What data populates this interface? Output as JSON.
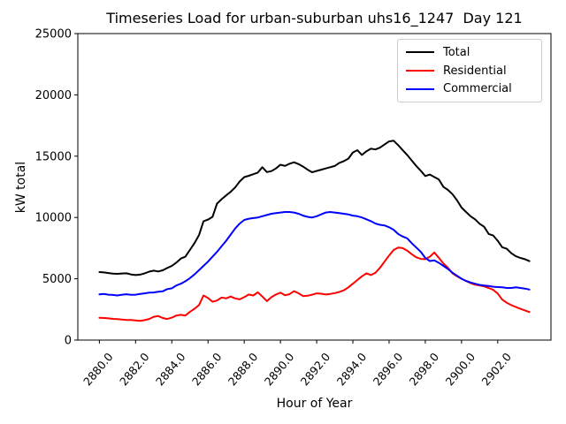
{
  "title": "Timeseries Load for urban-suburban uhs16_1247  Day 121",
  "chart_data": {
    "type": "line",
    "title": "Timeseries Load for urban-suburban uhs16_1247  Day 121",
    "xlabel": "Hour of Year",
    "ylabel": "kW total",
    "xlim": [
      2878.81,
      2904.94
    ],
    "ylim": [
      0,
      25000
    ],
    "grid": false,
    "legend_position": "upper right",
    "x_tick_labels": [
      "2880.0",
      "2882.0",
      "2884.0",
      "2886.0",
      "2888.0",
      "2890.0",
      "2892.0",
      "2894.0",
      "2896.0",
      "2898.0",
      "2900.0",
      "2902.0"
    ],
    "x_tick_values": [
      2880,
      2882,
      2884,
      2886,
      2888,
      2890,
      2892,
      2894,
      2896,
      2898,
      2900,
      2902
    ],
    "y_tick_labels": [
      "0",
      "5000",
      "10000",
      "15000",
      "20000",
      "25000"
    ],
    "y_tick_values": [
      0,
      5000,
      10000,
      15000,
      20000,
      25000
    ],
    "x_start": 2880.0,
    "x_step": 0.25,
    "series": [
      {
        "name": "Total",
        "color": "#000000",
        "values": [
          5550,
          5520,
          5470,
          5420,
          5400,
          5430,
          5450,
          5350,
          5300,
          5340,
          5450,
          5580,
          5660,
          5600,
          5690,
          5880,
          6050,
          6320,
          6650,
          6800,
          7350,
          7900,
          8550,
          9690,
          9830,
          10050,
          11130,
          11490,
          11800,
          12100,
          12450,
          12930,
          13290,
          13400,
          13530,
          13660,
          14100,
          13700,
          13780,
          14000,
          14300,
          14210,
          14380,
          14500,
          14350,
          14150,
          13900,
          13690,
          13800,
          13900,
          14000,
          14100,
          14200,
          14450,
          14600,
          14800,
          15300,
          15490,
          15100,
          15400,
          15610,
          15550,
          15700,
          15950,
          16200,
          16260,
          15900,
          15500,
          15100,
          14650,
          14200,
          13810,
          13380,
          13500,
          13300,
          13090,
          12490,
          12250,
          11900,
          11410,
          10810,
          10450,
          10100,
          9850,
          9490,
          9240,
          8650,
          8530,
          8100,
          7570,
          7450,
          7080,
          6840,
          6700,
          6600,
          6440
        ]
      },
      {
        "name": "Residential",
        "color": "#ff0000",
        "values": [
          1820,
          1800,
          1770,
          1730,
          1715,
          1670,
          1645,
          1640,
          1600,
          1570,
          1630,
          1720,
          1900,
          1960,
          1800,
          1720,
          1830,
          2000,
          2060,
          2000,
          2300,
          2550,
          2850,
          3640,
          3430,
          3130,
          3230,
          3470,
          3400,
          3550,
          3400,
          3320,
          3500,
          3720,
          3640,
          3900,
          3550,
          3180,
          3500,
          3720,
          3870,
          3660,
          3740,
          3990,
          3820,
          3590,
          3620,
          3700,
          3810,
          3780,
          3720,
          3770,
          3830,
          3930,
          4060,
          4300,
          4600,
          4900,
          5200,
          5450,
          5300,
          5500,
          5900,
          6400,
          6900,
          7350,
          7550,
          7500,
          7300,
          7000,
          6750,
          6620,
          6600,
          6800,
          7150,
          6700,
          6250,
          5900,
          5450,
          5200,
          5000,
          4820,
          4650,
          4520,
          4450,
          4380,
          4250,
          4100,
          3800,
          3300,
          3050,
          2850,
          2700,
          2550,
          2420,
          2290
        ]
      },
      {
        "name": "Commercial",
        "color": "#0000ff",
        "values": [
          3730,
          3760,
          3700,
          3680,
          3640,
          3700,
          3740,
          3690,
          3700,
          3760,
          3810,
          3870,
          3880,
          3940,
          3980,
          4160,
          4220,
          4450,
          4600,
          4800,
          5050,
          5350,
          5700,
          6050,
          6400,
          6800,
          7200,
          7650,
          8100,
          8600,
          9100,
          9500,
          9800,
          9900,
          9950,
          10000,
          10100,
          10200,
          10300,
          10350,
          10400,
          10450,
          10450,
          10400,
          10300,
          10150,
          10050,
          10000,
          10100,
          10250,
          10400,
          10450,
          10400,
          10350,
          10300,
          10250,
          10150,
          10100,
          10000,
          9850,
          9700,
          9500,
          9400,
          9350,
          9200,
          9000,
          8650,
          8450,
          8300,
          7900,
          7550,
          7200,
          6700,
          6450,
          6500,
          6300,
          6050,
          5800,
          5500,
          5250,
          5000,
          4830,
          4700,
          4600,
          4500,
          4450,
          4420,
          4350,
          4320,
          4300,
          4250,
          4250,
          4300,
          4250,
          4200,
          4120
        ]
      }
    ]
  }
}
